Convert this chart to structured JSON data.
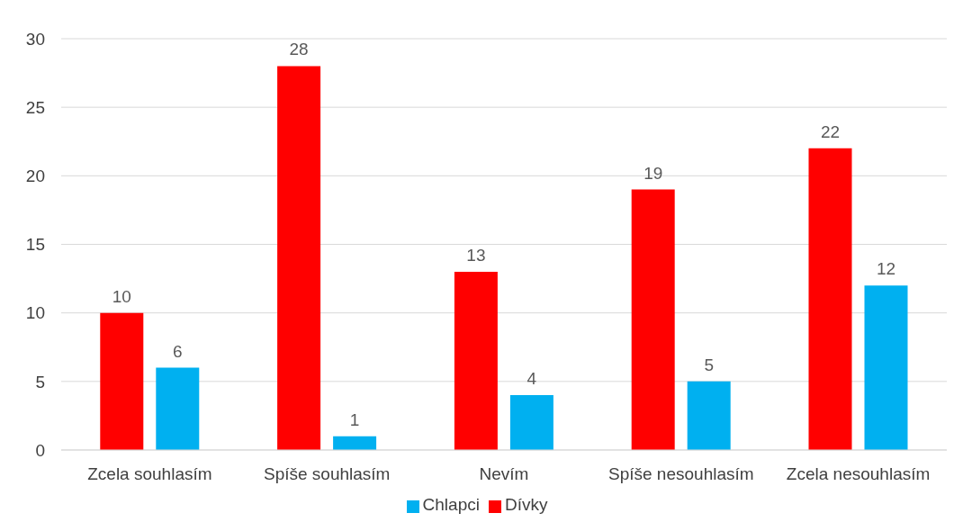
{
  "chart_data": {
    "type": "bar",
    "categories": [
      "Zcela souhlasím",
      "Spíše souhlasím",
      "Nevím",
      "Spíše nesouhlasím",
      "Zcela nesouhlasím"
    ],
    "series": [
      {
        "name": "Dívky",
        "color": "#ff0000",
        "values": [
          10,
          28,
          13,
          19,
          22
        ]
      },
      {
        "name": "Chlapci",
        "color": "#00b0f0",
        "values": [
          6,
          1,
          4,
          5,
          12
        ]
      }
    ],
    "ylim": [
      0,
      30
    ],
    "yticks": [
      0,
      5,
      10,
      15,
      20,
      25,
      30
    ],
    "grid": "y",
    "legend": "bottom",
    "data_labels": true
  }
}
